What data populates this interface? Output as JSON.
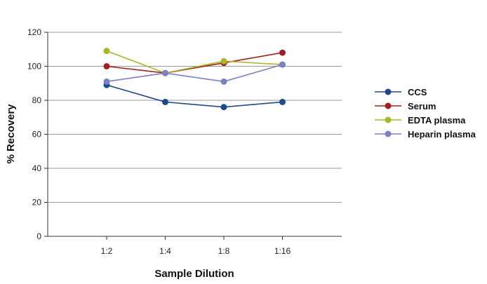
{
  "chart_data": {
    "type": "line",
    "categories": [
      "1:2",
      "1:4",
      "1:8",
      "1:16"
    ],
    "xlabel": "Sample Dilution",
    "ylabel": "% Recovery",
    "ylim": [
      0,
      120
    ],
    "yticks": [
      0,
      20,
      40,
      60,
      80,
      100,
      120
    ],
    "grid": true,
    "legend_position": "right",
    "series": [
      {
        "name": "CCS",
        "color": "#1c4b8c",
        "values": [
          89,
          79,
          76,
          79
        ]
      },
      {
        "name": "Serum",
        "color": "#a11f1f",
        "values": [
          100,
          96,
          102,
          108
        ]
      },
      {
        "name": "EDTA plasma",
        "color": "#a9b626",
        "values": [
          109,
          96,
          103,
          101
        ]
      },
      {
        "name": "Heparin plasma",
        "color": "#7b7fc4",
        "values": [
          91,
          96,
          91,
          101
        ]
      }
    ]
  }
}
